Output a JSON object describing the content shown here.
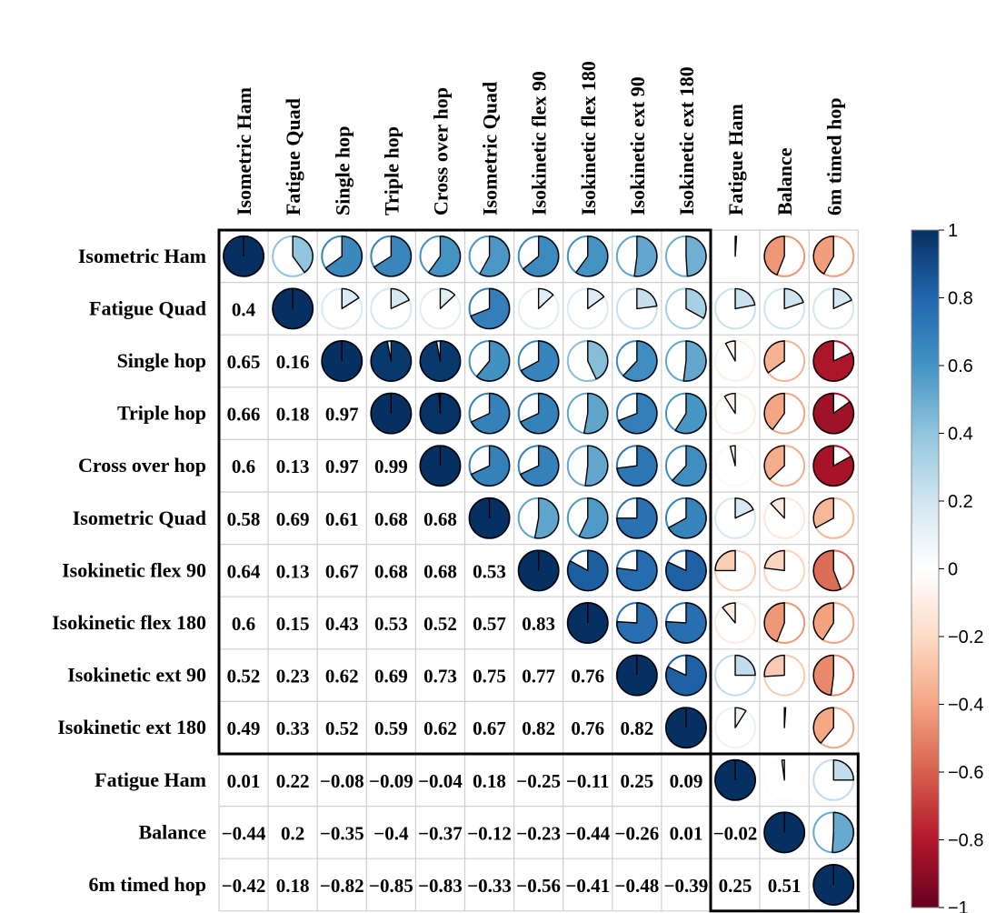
{
  "chart_data": {
    "type": "heatmap",
    "subtype": "correlation-matrix-pie",
    "title": "",
    "variables": [
      "Isometric Ham",
      "Fatigue Quad",
      "Single hop",
      "Triple hop",
      "Cross over hop",
      "Isometric Quad",
      "Isokinetic flex 90",
      "Isokinetic flex 180",
      "Isokinetic ext 90",
      "Isokinetic ext 180",
      "Fatigue Ham",
      "Balance",
      "6m timed hop"
    ],
    "lower_triangle_labels": [
      [],
      [
        "0.4"
      ],
      [
        "0.65",
        "0.16"
      ],
      [
        "0.66",
        "0.18",
        "0.97"
      ],
      [
        "0.6",
        "0.13",
        "0.97",
        "0.99"
      ],
      [
        "0.58",
        "0.69",
        "0.61",
        "0.68",
        "0.68"
      ],
      [
        "0.64",
        "0.13",
        "0.67",
        "0.68",
        "0.68",
        "0.53"
      ],
      [
        "0.6",
        "0.15",
        "0.43",
        "0.53",
        "0.52",
        "0.57",
        "0.83"
      ],
      [
        "0.52",
        "0.23",
        "0.62",
        "0.69",
        "0.73",
        "0.75",
        "0.77",
        "0.76"
      ],
      [
        "0.49",
        "0.33",
        "0.52",
        "0.59",
        "0.62",
        "0.67",
        "0.82",
        "0.76",
        "0.82"
      ],
      [
        "0.01",
        "0.22",
        "−0.08",
        "−0.09",
        "−0.04",
        "0.18",
        "−0.25",
        "−0.11",
        "0.25",
        "0.09"
      ],
      [
        "−0.44",
        "0.2",
        "−0.35",
        "−0.4",
        "−0.37",
        "−0.12",
        "−0.23",
        "−0.44",
        "−0.26",
        "0.01",
        "−0.02"
      ],
      [
        "−0.42",
        "0.18",
        "−0.82",
        "−0.85",
        "−0.83",
        "−0.33",
        "−0.56",
        "−0.41",
        "−0.48",
        "−0.39",
        "0.25",
        "0.51"
      ]
    ],
    "cluster_boxes": [
      {
        "first_index": 0,
        "last_index": 9
      },
      {
        "first_index": 10,
        "last_index": 12
      }
    ],
    "colorbar": {
      "ticks": [
        "1",
        "0.8",
        "0.6",
        "0.4",
        "0.2",
        "0",
        "−0.2",
        "−0.4",
        "−0.6",
        "−0.8",
        "−1"
      ],
      "range": [
        -1,
        1
      ],
      "colors": [
        "#67001F",
        "#B2182B",
        "#D6604D",
        "#F4A582",
        "#FDDBC7",
        "#FFFFFF",
        "#D1E5F0",
        "#92C5DE",
        "#4393C3",
        "#2166AC",
        "#053061"
      ]
    },
    "grid": true
  }
}
